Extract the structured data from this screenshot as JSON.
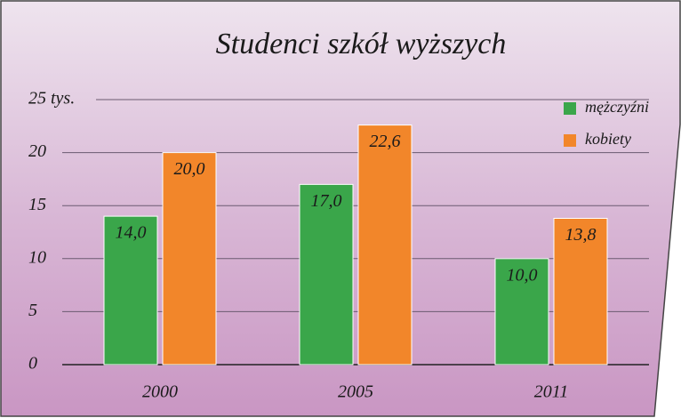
{
  "chart_data": {
    "type": "bar",
    "title": "Studenci szkół wyższych",
    "categories": [
      "2000",
      "2005",
      "2011"
    ],
    "series": [
      {
        "name": "mężczyźni",
        "color": "#3aa64a",
        "values": [
          14,
          17,
          10
        ],
        "value_labels": [
          "14,0",
          "17,0",
          "10,0"
        ]
      },
      {
        "name": "kobiety",
        "color": "#f2862a",
        "values": [
          20,
          22.6,
          13.8
        ],
        "value_labels": [
          "20,0",
          "22,6",
          "13,8"
        ]
      }
    ],
    "ylim": [
      0,
      25
    ],
    "yticks": [
      0,
      5,
      10,
      15,
      20,
      {
        "value": 25,
        "label": "25 tys."
      }
    ],
    "grid": true,
    "legend": "top-right"
  }
}
